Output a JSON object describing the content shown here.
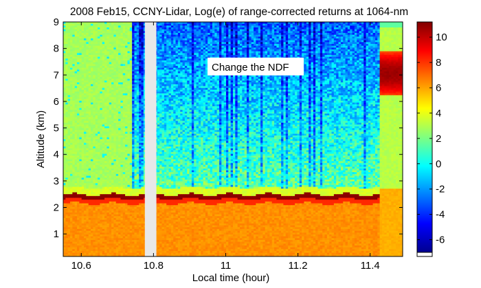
{
  "chart_data": {
    "type": "heatmap",
    "title": "2008 Feb15, CCNY-Lidar, Log(e) of range-corrected returns at 1064-nm",
    "xlabel": "Local time (hour)",
    "ylabel": "Altitude (km)",
    "xlim": [
      10.55,
      11.49
    ],
    "ylim": [
      0.15,
      9.0
    ],
    "x_ticks": [
      "10.6",
      "10.8",
      "11",
      "11.2",
      "11.4"
    ],
    "y_ticks": [
      "1",
      "2",
      "3",
      "4",
      "5",
      "6",
      "7",
      "8",
      "9"
    ],
    "colorbar": {
      "range": [
        -7,
        11.2
      ],
      "ticks": [
        "-6",
        "-4",
        "-2",
        "0",
        "2",
        "4",
        "6",
        "8",
        "10"
      ],
      "colormap": "jet"
    },
    "annotation": "Change the NDF",
    "data_gap": [
      10.776,
      10.808
    ],
    "features": {
      "boundary_layer_top_km": 2.4,
      "boundary_layer_peak_value": 11,
      "aerosol_layer_value": 6,
      "cloud": {
        "x": [
          11.43,
          11.49
        ],
        "altitude_km": [
          6.2,
          7.9
        ],
        "peak_value": 10.5
      }
    }
  }
}
